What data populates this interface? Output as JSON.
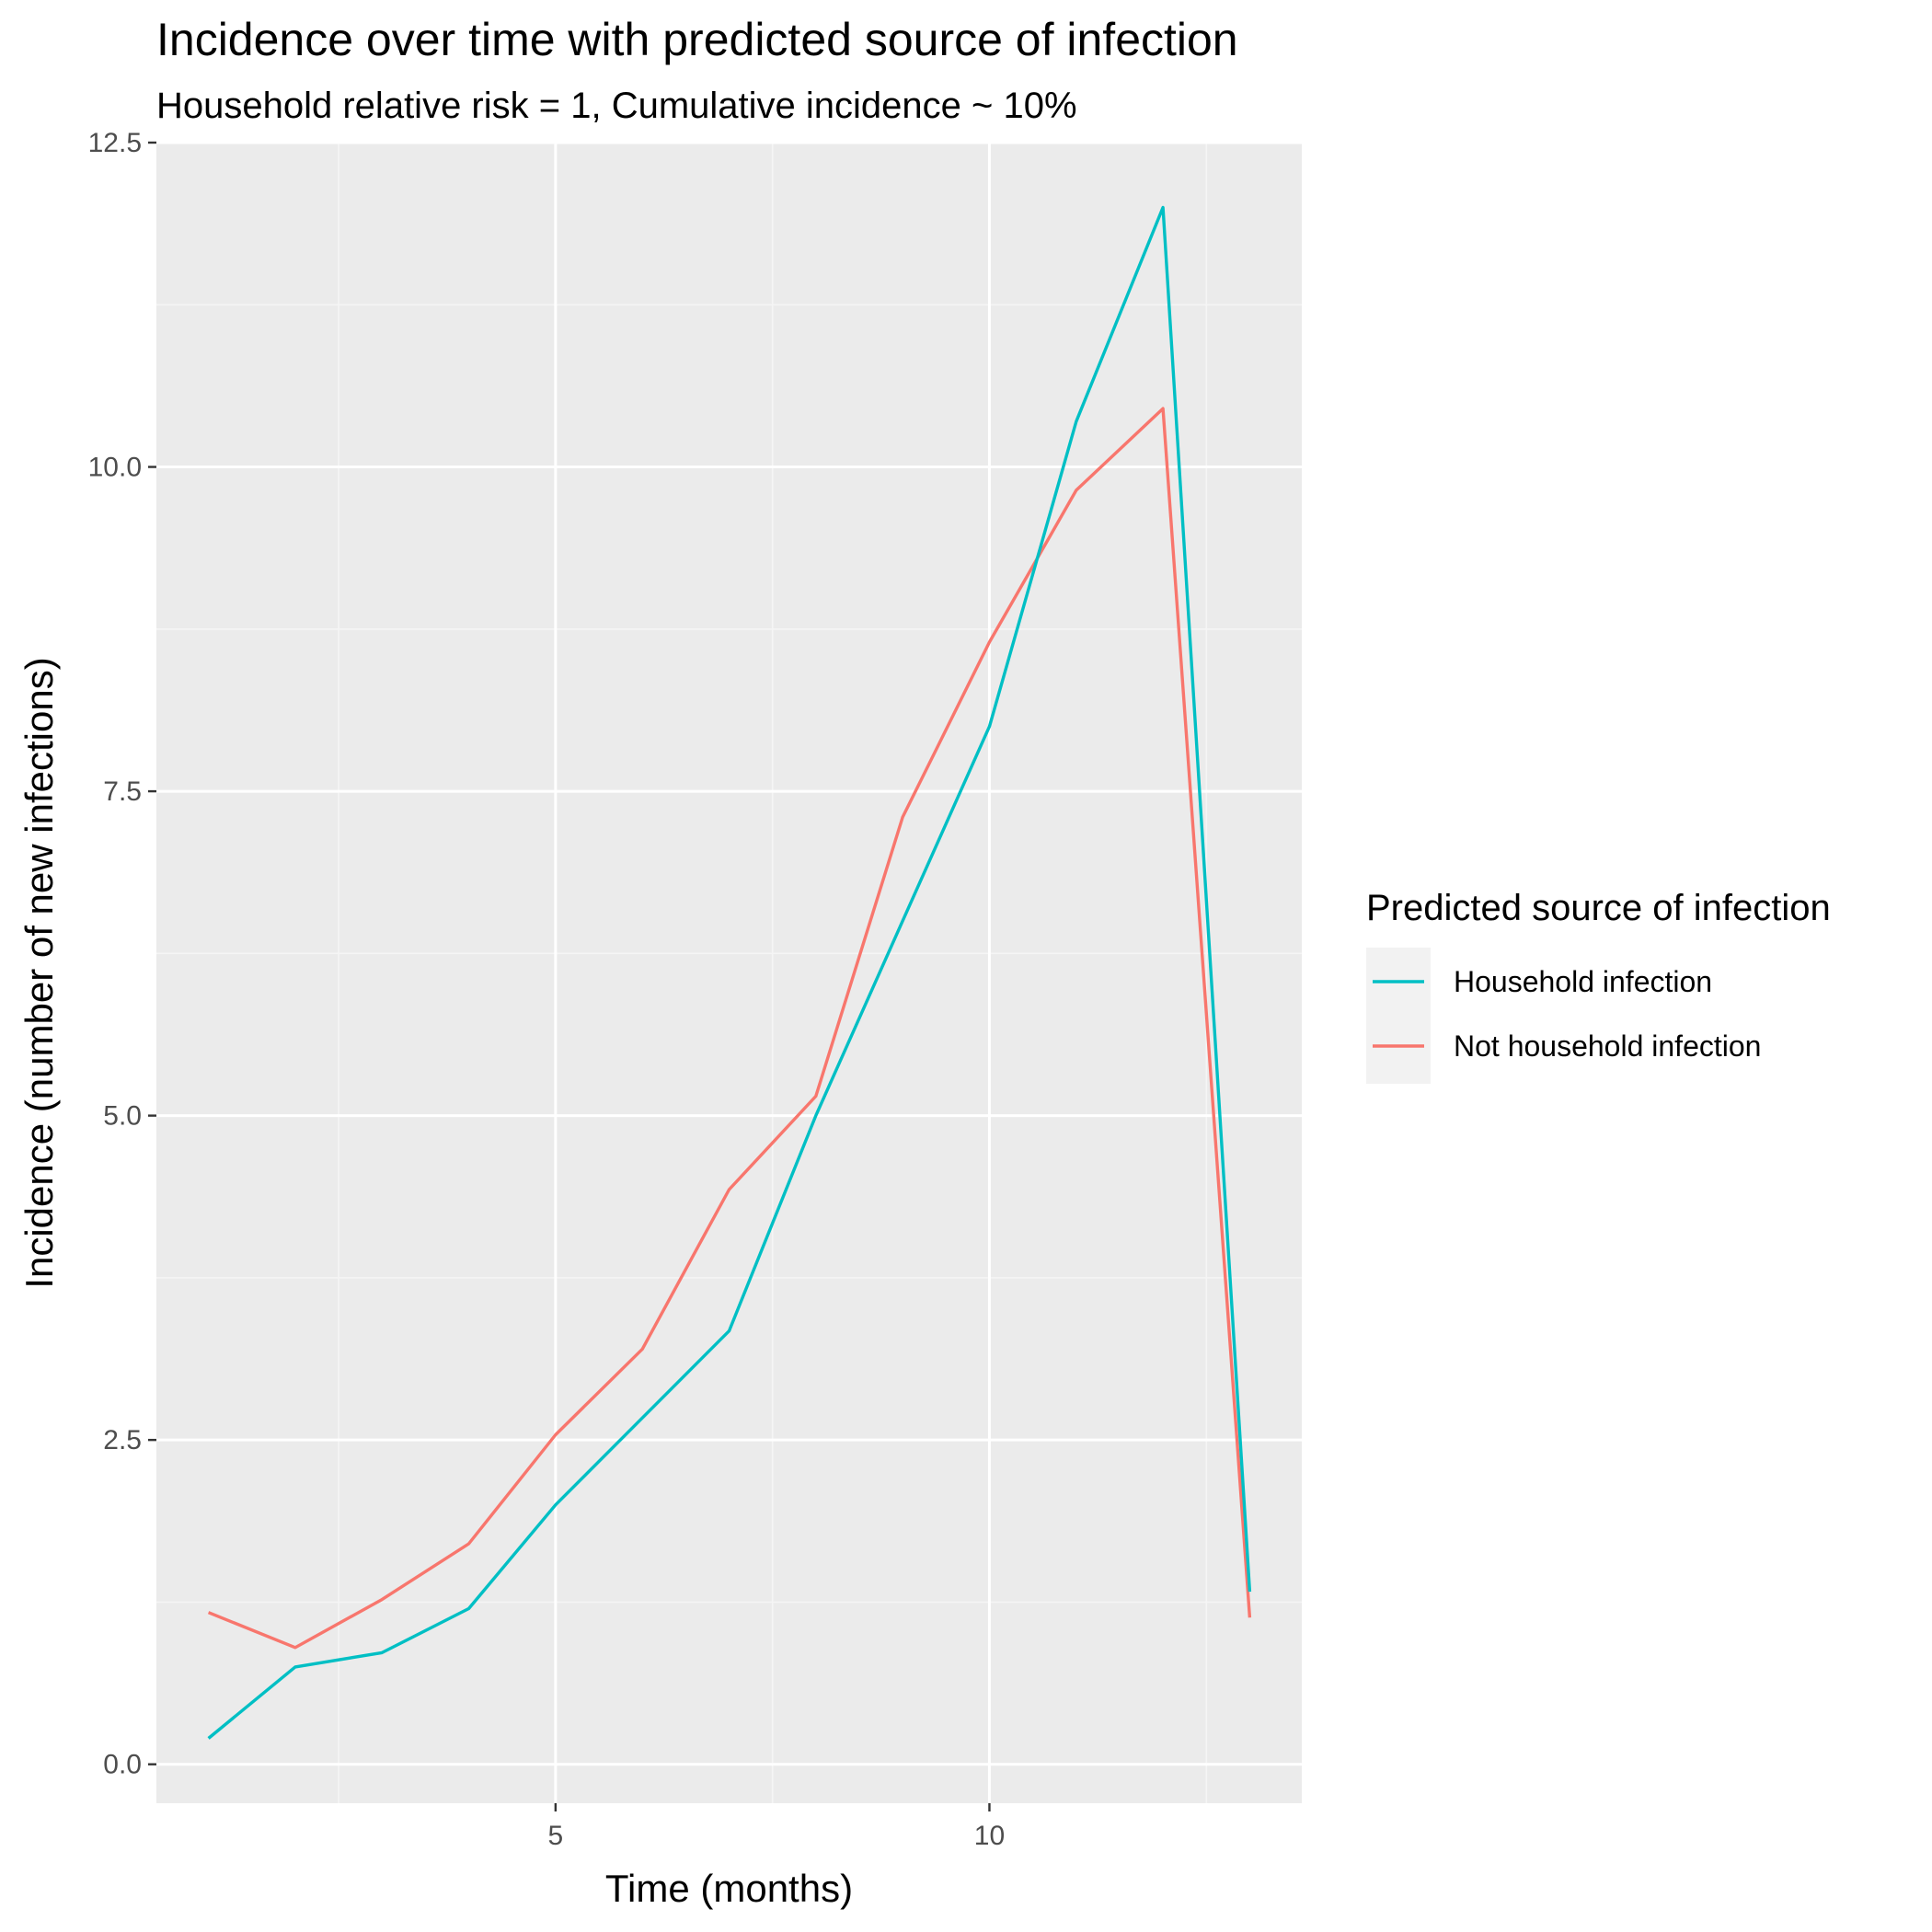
{
  "chart_data": {
    "type": "line",
    "title": "Incidence over time with predicted source of infection",
    "subtitle": "Household relative risk = 1, Cumulative incidence ~ 10%",
    "xlabel": "Time (months)",
    "ylabel": "Incidence (number of new infections)",
    "x": [
      1,
      2,
      3,
      4,
      5,
      6,
      7,
      8,
      9,
      10,
      11,
      12,
      13
    ],
    "xlim": [
      0.4,
      13.6
    ],
    "ylim": [
      -0.3,
      12.5
    ],
    "x_ticks": [
      5,
      10
    ],
    "x_tick_labels": [
      "5",
      "10"
    ],
    "x_minor_ticks": [
      2.5,
      7.5,
      12.5
    ],
    "y_ticks": [
      0,
      2.5,
      5,
      7.5,
      10,
      12.5
    ],
    "y_tick_labels": [
      "0.0",
      "2.5",
      "5.0",
      "7.5",
      "10.0",
      "12.5"
    ],
    "y_minor_ticks": [
      1.25,
      3.75,
      6.25,
      8.75,
      11.25
    ],
    "grid": true,
    "legend_position": "right",
    "legend_title": "Predicted source of infection",
    "series": [
      {
        "name": "Household infection",
        "color": "#00bfc4",
        "values": [
          0.2,
          0.75,
          0.86,
          1.2,
          2.0,
          2.67,
          3.34,
          5.0,
          6.5,
          8.0,
          10.35,
          12.0,
          1.33
        ]
      },
      {
        "name": "Not household infection",
        "color": "#f8766d",
        "values": [
          1.17,
          0.9,
          1.27,
          1.7,
          2.54,
          3.2,
          4.43,
          5.15,
          7.3,
          8.65,
          9.82,
          10.45,
          1.13
        ]
      }
    ],
    "colors": {
      "panel_background": "#ebebeb",
      "grid_major": "#ffffff",
      "grid_minor": "#f5f5f5",
      "legend_key_background": "#f2f2f2",
      "tick_text": "#4d4d4d"
    }
  }
}
